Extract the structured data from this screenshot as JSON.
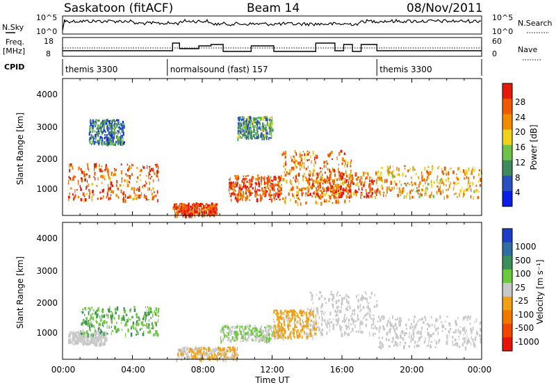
{
  "header": {
    "station": "Saskatoon (fitACF)",
    "beam": "Beam 14",
    "date": "08/Nov/2011"
  },
  "nsky_panel": {
    "label": "N.Sky",
    "left_ticks": [
      "10^5",
      "10^0"
    ],
    "right_ticks": [
      "10^5",
      "10^0"
    ],
    "right_label": "N.Search"
  },
  "freq_panel": {
    "label_line1": "Freq.",
    "label_line2": "[MHz]",
    "left_ticks": [
      "18",
      "8"
    ],
    "right_ticks": [
      "60",
      "0"
    ],
    "right_label": "Nave"
  },
  "cpid_panel": {
    "label": "CPID",
    "segments": [
      {
        "text": "themis 3300",
        "start_hour": 0,
        "end_hour": 6
      },
      {
        "text": "normalsound (fast) 157",
        "start_hour": 6,
        "end_hour": 18
      },
      {
        "text": "themis 3300",
        "start_hour": 18,
        "end_hour": 24
      }
    ]
  },
  "power_panel": {
    "ylabel": "Slant Range [km]",
    "yticks": [
      "4000",
      "3000",
      "2000",
      "1000"
    ],
    "colorbar_label": "Power [dB]",
    "colorbar_ticks": [
      "28",
      "24",
      "20",
      "16",
      "12",
      "8",
      "4"
    ],
    "colors": [
      "#0a1ee6",
      "#2a4fc0",
      "#3e8a5a",
      "#6cc24a",
      "#f0d21e",
      "#f08c00",
      "#f05a00",
      "#e61a0a"
    ]
  },
  "velocity_panel": {
    "ylabel": "Slant Range [km]",
    "yticks": [
      "4000",
      "3000",
      "2000",
      "1000"
    ],
    "colorbar_label": "Velocity [m s⁻¹]",
    "colorbar_ticks": [
      "1000",
      "500",
      "100",
      "25",
      "-25",
      "-100",
      "-500",
      "-1000"
    ],
    "colors": [
      "#1e3cc8",
      "#2e6ea0",
      "#3a8e5a",
      "#6cc83c",
      "#c8c8c8",
      "#f0a014",
      "#f07800",
      "#f04600",
      "#e6140a"
    ]
  },
  "x_axis": {
    "label": "Time UT",
    "ticks": [
      "00:00",
      "04:00",
      "08:00",
      "12:00",
      "16:00",
      "20:00",
      "00:00"
    ]
  },
  "chart_data": [
    {
      "type": "heatmap",
      "title": "Saskatoon (fitACF)  Beam 14  08/Nov/2011",
      "xlabel": "Time UT",
      "ylabel": "Slant Range [km]",
      "colorbar": "Power [dB]",
      "xlim": [
        0,
        24
      ],
      "ylim": [
        180,
        4600
      ],
      "clim": [
        0,
        30
      ],
      "regions": [
        {
          "start_hour": 0.3,
          "end_hour": 5.5,
          "range_lo": 700,
          "range_hi": 1900,
          "value": 24
        },
        {
          "start_hour": 1.5,
          "end_hour": 3.5,
          "range_lo": 2500,
          "range_hi": 3300,
          "value": 8
        },
        {
          "start_hour": 6.3,
          "end_hour": 8.8,
          "range_lo": 200,
          "range_hi": 600,
          "value": 26
        },
        {
          "start_hour": 9.5,
          "end_hour": 12.5,
          "range_lo": 700,
          "range_hi": 1500,
          "value": 26
        },
        {
          "start_hour": 10,
          "end_hour": 12,
          "range_lo": 2700,
          "range_hi": 3400,
          "value": 10
        },
        {
          "start_hour": 12.5,
          "end_hour": 16.5,
          "range_lo": 600,
          "range_hi": 2300,
          "value": 22
        },
        {
          "start_hour": 14,
          "end_hour": 18,
          "range_lo": 800,
          "range_hi": 1600,
          "value": 24
        },
        {
          "start_hour": 18,
          "end_hour": 24,
          "range_lo": 800,
          "range_hi": 1800,
          "value": 20
        }
      ]
    },
    {
      "type": "heatmap",
      "title": "Saskatoon (fitACF)  Beam 14  08/Nov/2011",
      "xlabel": "Time UT",
      "ylabel": "Slant Range [km]",
      "colorbar": "Velocity [m s⁻¹]",
      "xlim": [
        0,
        24
      ],
      "ylim": [
        180,
        4600
      ],
      "clim": [
        -1000,
        1000
      ],
      "regions": [
        {
          "start_hour": 0.3,
          "end_hour": 2.5,
          "range_lo": 700,
          "range_hi": 1100,
          "value": 0
        },
        {
          "start_hour": 1,
          "end_hour": 5.5,
          "range_lo": 1000,
          "range_hi": 1900,
          "value": 300
        },
        {
          "start_hour": 6.5,
          "end_hour": 10,
          "range_lo": 200,
          "range_hi": 600,
          "value": -100
        },
        {
          "start_hour": 9,
          "end_hour": 12.5,
          "range_lo": 800,
          "range_hi": 1300,
          "value": 100
        },
        {
          "start_hour": 12,
          "end_hour": 14.5,
          "range_lo": 900,
          "range_hi": 1800,
          "value": -200
        },
        {
          "start_hour": 14,
          "end_hour": 18,
          "range_lo": 1000,
          "range_hi": 2400,
          "value": 0
        },
        {
          "start_hour": 18,
          "end_hour": 24,
          "range_lo": 600,
          "range_hi": 1600,
          "value": 0
        }
      ]
    }
  ]
}
